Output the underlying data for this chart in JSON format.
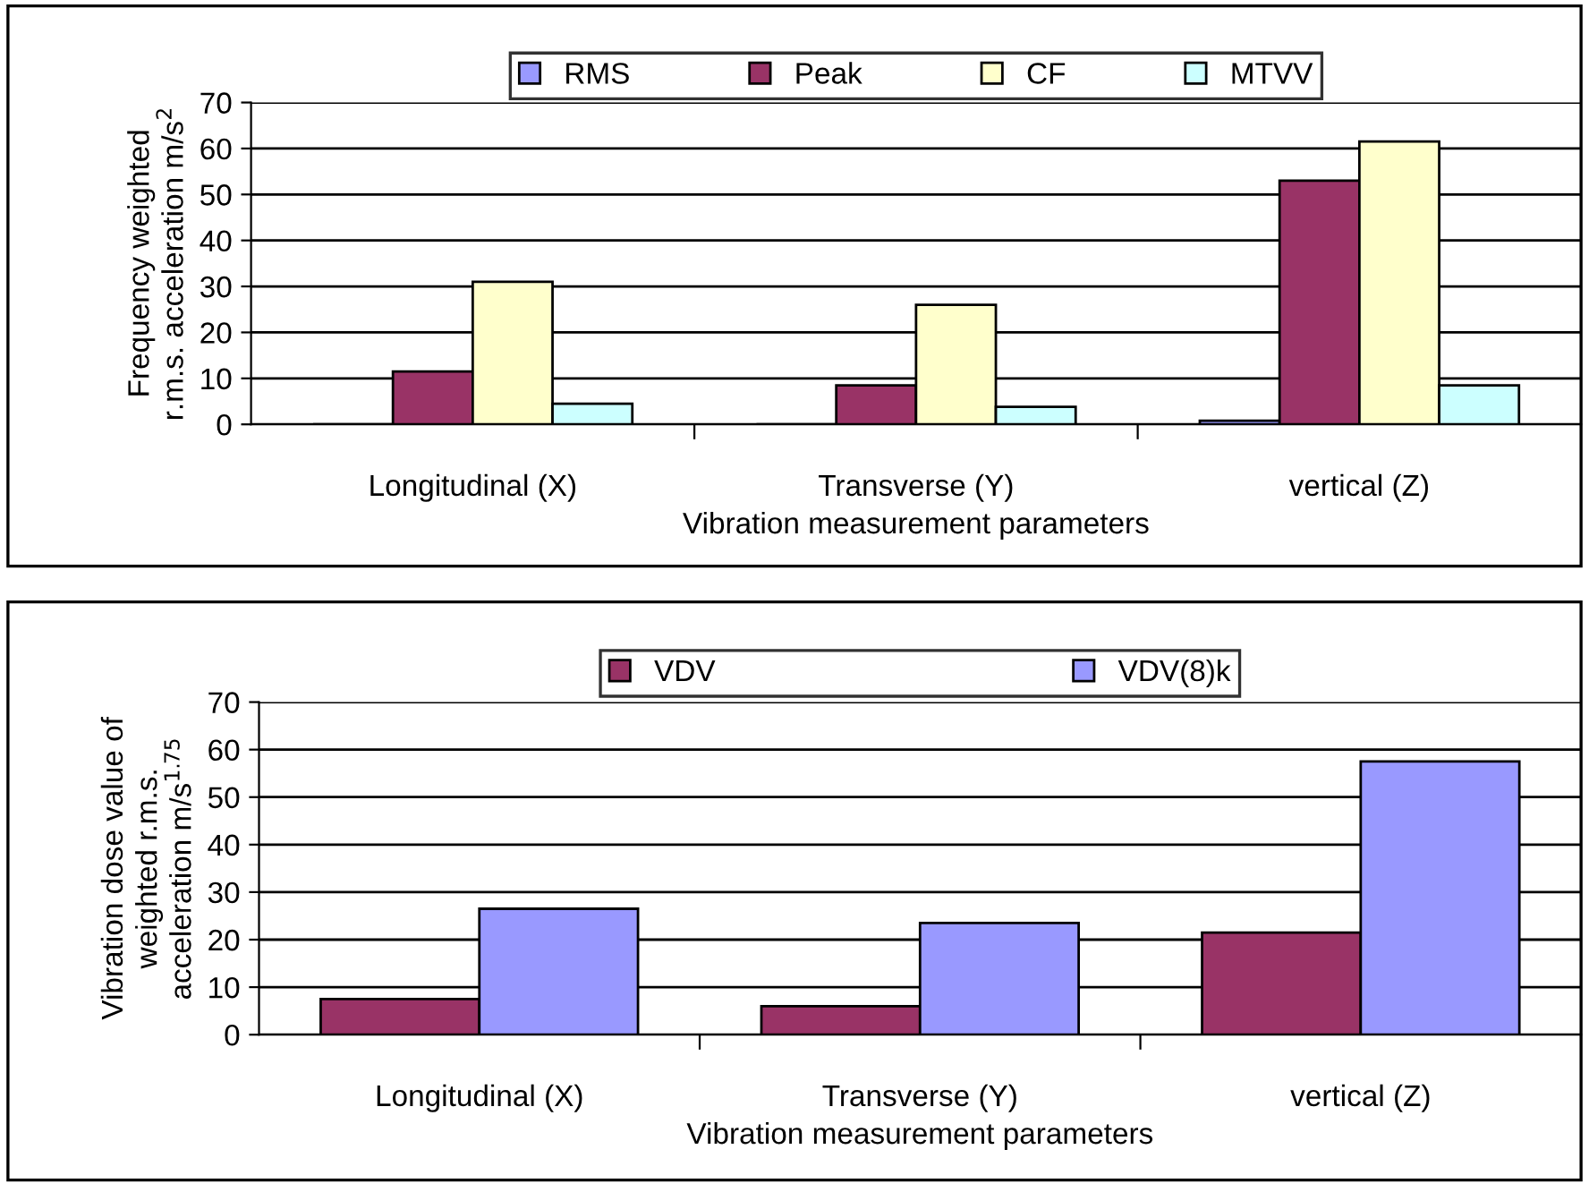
{
  "chart_data": [
    {
      "type": "bar",
      "xlabel": "Vibration measurement parameters",
      "ylabel": "Frequency weighted\nr.m.s. acceleration m/s$^{2}$",
      "categories": [
        "Longitudinal (X)",
        "Transverse (Y)",
        "vertical (Z)"
      ],
      "series": [
        {
          "name": "RMS",
          "color": "#9999ff",
          "values": [
            null,
            null,
            0.8
          ]
        },
        {
          "name": "Peak",
          "color": "#993366",
          "values": [
            11.5,
            8.5,
            53
          ]
        },
        {
          "name": "CF",
          "color": "#ffffcc",
          "values": [
            31,
            26,
            61.5
          ]
        },
        {
          "name": "MTVV",
          "color": "#ccffff",
          "values": [
            4.5,
            3.8,
            8.5
          ]
        }
      ],
      "ylim": [
        0,
        70
      ],
      "yticks": [
        0,
        10,
        20,
        30,
        40,
        50,
        60,
        70
      ],
      "grid": "y",
      "legend": "top"
    },
    {
      "type": "bar",
      "xlabel": "Vibration measurement parameters",
      "ylabel": "Vibration dose value of\nweighted r.m.s.\nacceleration m/s$^{1.75}$",
      "categories": [
        "Longitudinal (X)",
        "Transverse (Y)",
        "vertical (Z)"
      ],
      "series": [
        {
          "name": "VDV",
          "color": "#993366",
          "values": [
            7.5,
            6,
            21.5
          ]
        },
        {
          "name": "VDV(8)k",
          "color": "#9999ff",
          "values": [
            26.5,
            23.5,
            57.5
          ]
        }
      ],
      "ylim": [
        0,
        70
      ],
      "yticks": [
        0,
        10,
        20,
        30,
        40,
        50,
        60,
        70
      ],
      "grid": "y",
      "legend": "top"
    }
  ]
}
